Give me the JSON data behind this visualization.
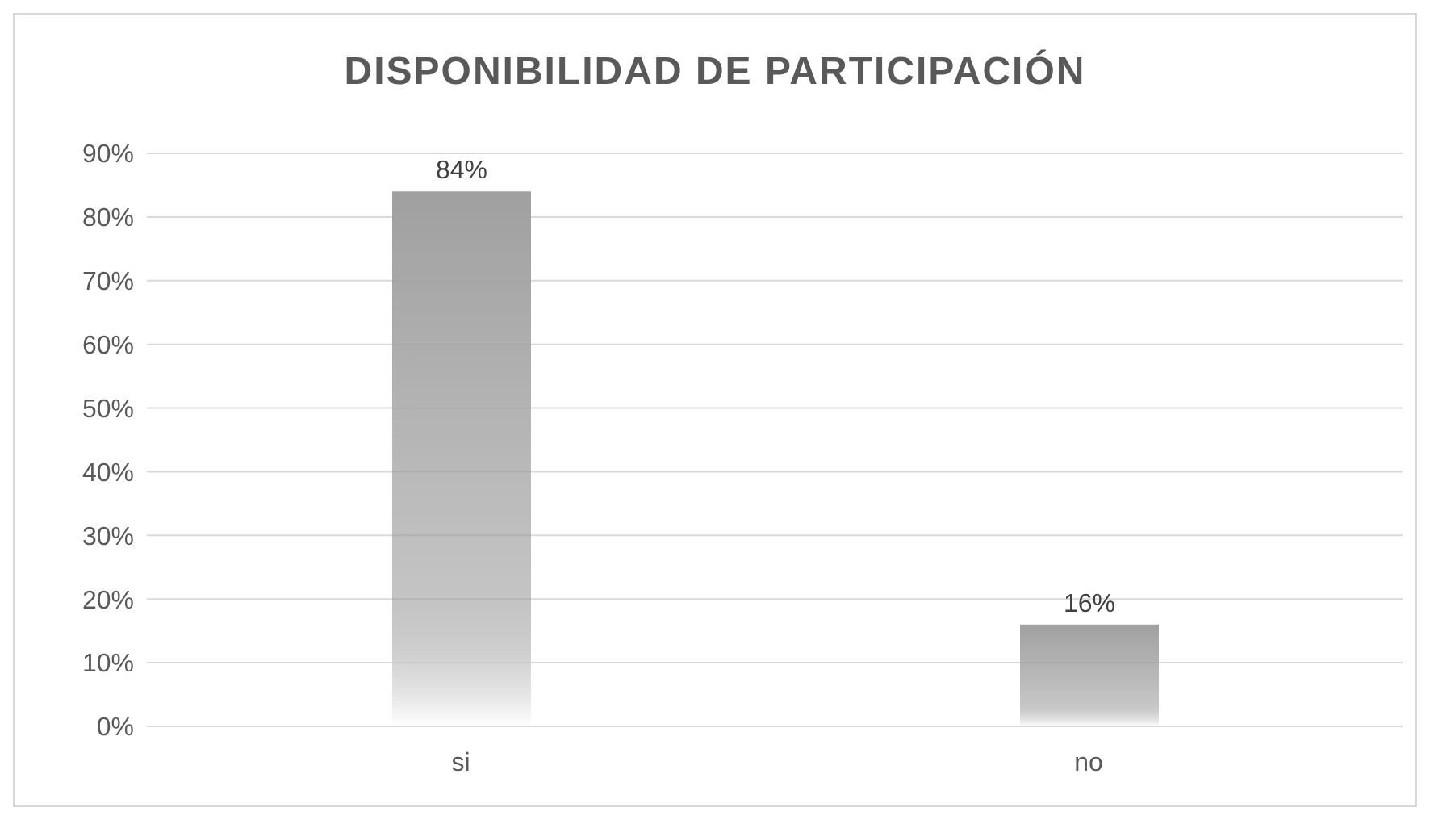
{
  "chart_data": {
    "type": "bar",
    "title": "DISPONIBILIDAD DE PARTICIPACIÓN",
    "categories": [
      "si",
      "no"
    ],
    "values": [
      84,
      16
    ],
    "value_labels": [
      "84%",
      "16%"
    ],
    "color": "#a0a0a0",
    "ylim": [
      0,
      90
    ],
    "yticks": [
      {
        "value": 0,
        "label": "0%"
      },
      {
        "value": 10,
        "label": "10%"
      },
      {
        "value": 20,
        "label": "20%"
      },
      {
        "value": 30,
        "label": "30%"
      },
      {
        "value": 40,
        "label": "40%"
      },
      {
        "value": 50,
        "label": "50%"
      },
      {
        "value": 60,
        "label": "60%"
      },
      {
        "value": 70,
        "label": "70%"
      },
      {
        "value": 80,
        "label": "80%"
      },
      {
        "value": 90,
        "label": "90%"
      }
    ],
    "grid": "y"
  }
}
